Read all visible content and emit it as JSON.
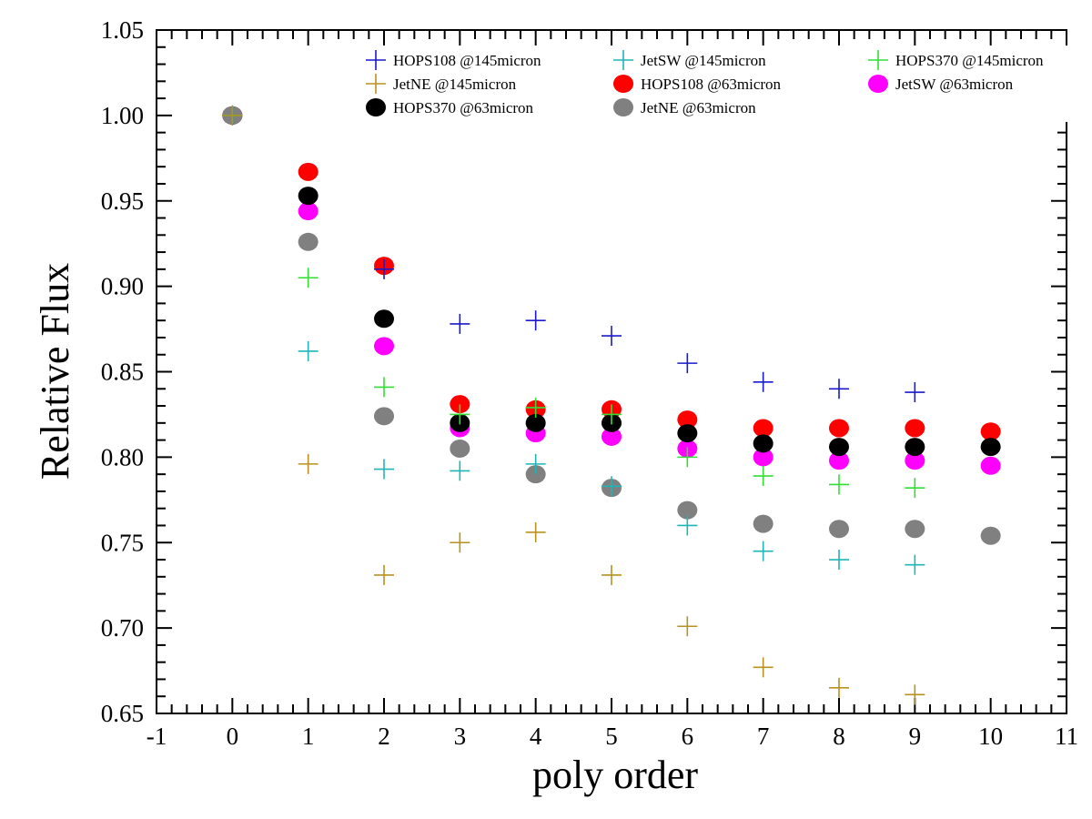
{
  "chart_data": {
    "type": "scatter",
    "xlabel": "poly order",
    "ylabel": "Relative Flux",
    "xlim": [
      -1,
      11
    ],
    "ylim": [
      0.65,
      1.05
    ],
    "x_ticks": [
      "-1",
      "0",
      "1",
      "2",
      "3",
      "4",
      "5",
      "6",
      "7",
      "8",
      "9",
      "10",
      "11"
    ],
    "y_ticks": [
      "0.65",
      "0.70",
      "0.75",
      "0.80",
      "0.85",
      "0.90",
      "0.95",
      "1.00",
      "1.05"
    ],
    "legend_position": "top",
    "series": [
      {
        "name": "HOPS108 @145micron",
        "marker": "plus",
        "color": "#1a1acc",
        "x": [
          0,
          2,
          3,
          4,
          5,
          6,
          7,
          8,
          9
        ],
        "y": [
          1.0,
          0.91,
          0.878,
          0.88,
          0.871,
          0.855,
          0.844,
          0.84,
          0.838
        ]
      },
      {
        "name": "JetSW @145micron",
        "marker": "plus",
        "color": "#1fb5b5",
        "x": [
          0,
          1,
          2,
          3,
          4,
          5,
          6,
          7,
          8,
          9
        ],
        "y": [
          1.0,
          0.862,
          0.793,
          0.792,
          0.796,
          0.783,
          0.76,
          0.745,
          0.74,
          0.737
        ]
      },
      {
        "name": "HOPS370 @145micron",
        "marker": "plus",
        "color": "#33dd33",
        "x": [
          0,
          1,
          2,
          3,
          4,
          5,
          6,
          7,
          8,
          9
        ],
        "y": [
          1.0,
          0.905,
          0.841,
          0.825,
          0.829,
          0.825,
          0.8,
          0.789,
          0.784,
          0.782
        ]
      },
      {
        "name": "JetNE @145micron",
        "marker": "plus",
        "color": "#b8921e",
        "x": [
          0,
          1,
          2,
          3,
          4,
          5,
          6,
          7,
          8,
          9
        ],
        "y": [
          1.0,
          0.796,
          0.731,
          0.75,
          0.756,
          0.731,
          0.701,
          0.677,
          0.665,
          0.661
        ]
      },
      {
        "name": "HOPS108 @63micron",
        "marker": "circle",
        "color": "#ff0000",
        "x": [
          0,
          1,
          2,
          3,
          4,
          5,
          6,
          7,
          8,
          9,
          10
        ],
        "y": [
          1.0,
          0.967,
          0.912,
          0.831,
          0.828,
          0.828,
          0.822,
          0.817,
          0.817,
          0.817,
          0.815
        ]
      },
      {
        "name": "JetSW @63micron",
        "marker": "circle",
        "color": "#ff00ff",
        "x": [
          0,
          1,
          2,
          3,
          4,
          5,
          6,
          7,
          8,
          9,
          10
        ],
        "y": [
          1.0,
          0.944,
          0.865,
          0.817,
          0.814,
          0.812,
          0.805,
          0.8,
          0.798,
          0.798,
          0.795
        ]
      },
      {
        "name": "HOPS370 @63micron",
        "marker": "circle",
        "color": "#000000",
        "x": [
          0,
          1,
          2,
          3,
          4,
          5,
          6,
          7,
          8,
          9,
          10
        ],
        "y": [
          1.0,
          0.953,
          0.881,
          0.82,
          0.82,
          0.82,
          0.814,
          0.808,
          0.806,
          0.806,
          0.806
        ]
      },
      {
        "name": "JetNE @63micron",
        "marker": "circle",
        "color": "#808080",
        "x": [
          0,
          1,
          2,
          3,
          4,
          5,
          6,
          7,
          8,
          9,
          10
        ],
        "y": [
          1.0,
          0.926,
          0.824,
          0.805,
          0.79,
          0.782,
          0.769,
          0.761,
          0.758,
          0.758,
          0.754
        ]
      }
    ]
  }
}
